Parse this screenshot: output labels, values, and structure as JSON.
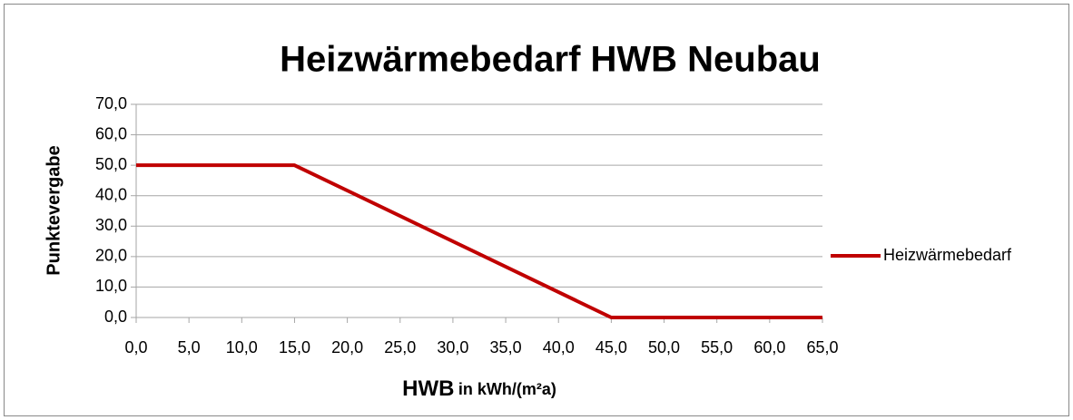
{
  "chart_data": {
    "type": "line",
    "title": "Heizwärmebedarf HWB Neubau",
    "xlabel": "HWB",
    "xlabel_unit": "in kWh/(m²a)",
    "ylabel": "Punktevergabe",
    "x": [
      0,
      15,
      45,
      65
    ],
    "series": [
      {
        "name": "Heizwärmebedarf",
        "color": "#c00000",
        "values": [
          50,
          50,
          0,
          0
        ]
      }
    ],
    "xlim": [
      0,
      65
    ],
    "xticks": [
      {
        "value": 0,
        "label": "0,0"
      },
      {
        "value": 5,
        "label": "5,0"
      },
      {
        "value": 10,
        "label": "10,0"
      },
      {
        "value": 15,
        "label": "15,0"
      },
      {
        "value": 20,
        "label": "20,0"
      },
      {
        "value": 25,
        "label": "25,0"
      },
      {
        "value": 30,
        "label": "30,0"
      },
      {
        "value": 35,
        "label": "35,0"
      },
      {
        "value": 40,
        "label": "40,0"
      },
      {
        "value": 45,
        "label": "45,0"
      },
      {
        "value": 50,
        "label": "50,0"
      },
      {
        "value": 55,
        "label": "55,0"
      },
      {
        "value": 60,
        "label": "60,0"
      },
      {
        "value": 65,
        "label": "65,0"
      }
    ],
    "ylim": [
      0,
      70
    ],
    "yticks": [
      {
        "value": 0,
        "label": "0,0"
      },
      {
        "value": 10,
        "label": "10,0"
      },
      {
        "value": 20,
        "label": "20,0"
      },
      {
        "value": 30,
        "label": "30,0"
      },
      {
        "value": 40,
        "label": "40,0"
      },
      {
        "value": 50,
        "label": "50,0"
      },
      {
        "value": 60,
        "label": "60,0"
      },
      {
        "value": 70,
        "label": "70,0"
      }
    ],
    "grid": true,
    "legend": "right"
  }
}
